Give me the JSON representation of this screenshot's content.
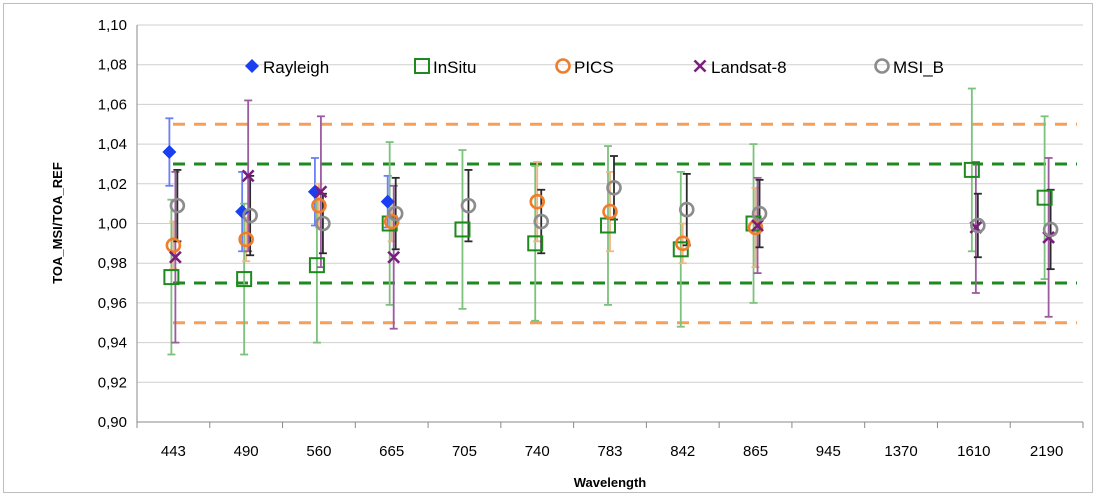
{
  "chart_data": {
    "type": "scatter",
    "title": "",
    "xlabel": "Wavelength",
    "ylabel": "TOA_MSI/TOA_REF",
    "ylim": [
      0.9,
      1.1
    ],
    "y_ticks": [
      "0,90",
      "0,92",
      "0,94",
      "0,96",
      "0,98",
      "1,00",
      "1,02",
      "1,04",
      "1,06",
      "1,08",
      "1,10"
    ],
    "categories": [
      "443",
      "490",
      "560",
      "665",
      "705",
      "740",
      "783",
      "842",
      "865",
      "945",
      "1370",
      "1610",
      "2190"
    ],
    "grid": "horizontal",
    "legend_position": "top",
    "reference_lines": [
      {
        "value": 1.05,
        "color": "#f5a05a"
      },
      {
        "value": 0.95,
        "color": "#f5a05a"
      },
      {
        "value": 1.03,
        "color": "#1e8a1e"
      },
      {
        "value": 0.97,
        "color": "#1e8a1e"
      }
    ],
    "series": [
      {
        "name": "Rayleigh",
        "marker": "diamond",
        "color": "#1a3ff0",
        "errcolor": "#6a7ff5",
        "points": [
          {
            "x": "443",
            "y": 1.036,
            "err": 0.017
          },
          {
            "x": "490",
            "y": 1.006,
            "err": 0.02
          },
          {
            "x": "560",
            "y": 1.016,
            "err": 0.017
          },
          {
            "x": "665",
            "y": 1.011,
            "err": 0.013
          }
        ]
      },
      {
        "name": "InSitu",
        "marker": "square",
        "color": "#1e8a1e",
        "errcolor": "#7cc27c",
        "points": [
          {
            "x": "443",
            "y": 0.973,
            "err": 0.039
          },
          {
            "x": "490",
            "y": 0.972,
            "err": 0.038
          },
          {
            "x": "560",
            "y": 0.979,
            "err": 0.039
          },
          {
            "x": "665",
            "y": 1.0,
            "err": 0.041
          },
          {
            "x": "705",
            "y": 0.997,
            "err": 0.04
          },
          {
            "x": "740",
            "y": 0.99,
            "err": 0.039
          },
          {
            "x": "783",
            "y": 0.999,
            "err": 0.04
          },
          {
            "x": "842",
            "y": 0.987,
            "err": 0.039
          },
          {
            "x": "865",
            "y": 1.0,
            "err": 0.04
          },
          {
            "x": "1610",
            "y": 1.027,
            "err": 0.041
          },
          {
            "x": "2190",
            "y": 1.013,
            "err": 0.041
          }
        ]
      },
      {
        "name": "PICS",
        "marker": "circle",
        "color": "#ee7d2c",
        "errcolor": "#f3b583",
        "points": [
          {
            "x": "443",
            "y": 0.989,
            "err": 0.012
          },
          {
            "x": "490",
            "y": 0.992,
            "err": 0.011
          },
          {
            "x": "560",
            "y": 1.009,
            "err": 0.011
          },
          {
            "x": "665",
            "y": 1.001,
            "err": 0.01
          },
          {
            "x": "740",
            "y": 1.011,
            "err": 0.02
          },
          {
            "x": "783",
            "y": 1.006,
            "err": 0.02
          },
          {
            "x": "842",
            "y": 0.99,
            "err": 0.01
          },
          {
            "x": "865",
            "y": 0.998,
            "err": 0.02
          }
        ]
      },
      {
        "name": "Landsat-8",
        "marker": "x",
        "color": "#7a1e7e",
        "errcolor": "#9c5aa0",
        "points": [
          {
            "x": "443",
            "y": 0.983,
            "err": 0.043
          },
          {
            "x": "490",
            "y": 1.024,
            "err": 0.038
          },
          {
            "x": "560",
            "y": 1.016,
            "err": 0.038
          },
          {
            "x": "665",
            "y": 0.983,
            "err": 0.036
          },
          {
            "x": "865",
            "y": 0.999,
            "err": 0.024
          },
          {
            "x": "1610",
            "y": 0.998,
            "err": 0.033
          },
          {
            "x": "2190",
            "y": 0.993,
            "err": 0.04
          }
        ]
      },
      {
        "name": "MSI_B",
        "marker": "circle",
        "color": "#8c8c8c",
        "errcolor": "#2b2b2b",
        "points": [
          {
            "x": "443",
            "y": 1.009,
            "err": 0.018
          },
          {
            "x": "490",
            "y": 1.004,
            "err": 0.02
          },
          {
            "x": "560",
            "y": 1.0,
            "err": 0.015
          },
          {
            "x": "665",
            "y": 1.005,
            "err": 0.018
          },
          {
            "x": "705",
            "y": 1.009,
            "err": 0.018
          },
          {
            "x": "740",
            "y": 1.001,
            "err": 0.016
          },
          {
            "x": "783",
            "y": 1.018,
            "err": 0.016
          },
          {
            "x": "842",
            "y": 1.007,
            "err": 0.018
          },
          {
            "x": "865",
            "y": 1.005,
            "err": 0.017
          },
          {
            "x": "1610",
            "y": 0.999,
            "err": 0.016
          },
          {
            "x": "2190",
            "y": 0.997,
            "err": 0.02
          }
        ]
      }
    ]
  }
}
